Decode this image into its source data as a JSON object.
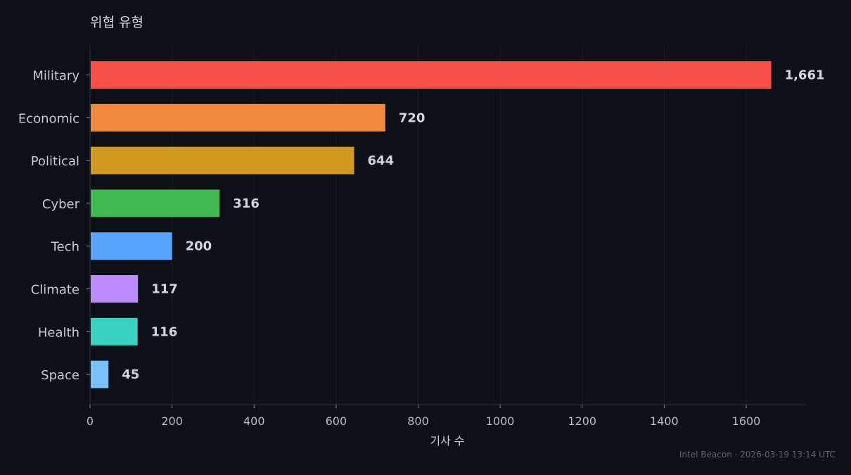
{
  "chart_data": {
    "type": "bar",
    "orientation": "horizontal",
    "title": "위협 유형",
    "xlabel": "기사 수",
    "ylabel": "",
    "categories": [
      "Military",
      "Economic",
      "Political",
      "Cyber",
      "Tech",
      "Climate",
      "Health",
      "Space"
    ],
    "values": [
      1661,
      720,
      644,
      316,
      200,
      117,
      116,
      45
    ],
    "value_labels": [
      "1,661",
      "720",
      "644",
      "316",
      "200",
      "117",
      "116",
      "45"
    ],
    "colors": [
      "#f85149",
      "#f0883e",
      "#d29922",
      "#3fb950",
      "#58a6ff",
      "#bc8cff",
      "#39d2c0",
      "#79c0ff"
    ],
    "xlim": [
      0,
      1745
    ],
    "xticks": [
      0,
      200,
      400,
      600,
      800,
      1000,
      1200,
      1400,
      1600
    ],
    "grid": true
  },
  "footer": "Intel Beacon · 2026-03-19 13:14 UTC",
  "theme": {
    "background": "#0d1017"
  }
}
